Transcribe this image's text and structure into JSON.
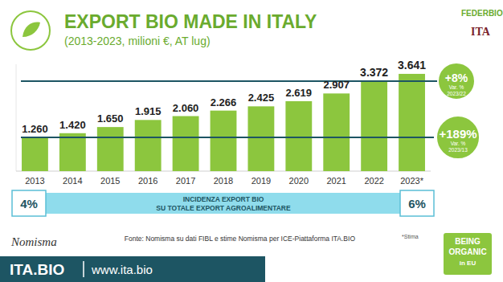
{
  "chart_data": {
    "type": "bar",
    "title": "EXPORT BIO MADE IN ITALY",
    "subtitle": "(2013-2023, milioni €, AT lug)",
    "categories": [
      "2013",
      "2014",
      "2015",
      "2016",
      "2017",
      "2018",
      "2019",
      "2020",
      "2021",
      "2022",
      "2023*"
    ],
    "values": [
      1260,
      1420,
      1650,
      1915,
      2060,
      2266,
      2425,
      2619,
      2907,
      3372,
      3641
    ],
    "value_labels": [
      "1.260",
      "1.420",
      "1.650",
      "1.915",
      "2.060",
      "2.266",
      "2.425",
      "2.619",
      "2.907",
      "3.372",
      "3.641"
    ],
    "color": "#8cc63e",
    "ylim": [
      0,
      4000
    ],
    "data_labels": true,
    "tick_labels": "x",
    "grid": false,
    "annotations": [
      {
        "text": "+8%",
        "label": "Var. %",
        "period": "2023/22",
        "reference": 3372
      },
      {
        "text": "+189%",
        "label": "Var. %",
        "period": "2023/13",
        "reference": 1260
      }
    ],
    "incidence": {
      "title": [
        "INCIDENZA EXPORT BIO",
        "SU TOTALE EXPORT AGROALIMENTARE"
      ],
      "start": "4%",
      "end": "6%"
    },
    "source": "Fonte: Nomisma su dati FIBL e stime Nomisma per ICE-Piattaforma ITA.BIO",
    "footnote": "*Stima",
    "logos": [
      "FEDERBIO",
      "ITA",
      "Nomisma"
    ],
    "badge": [
      "BEING",
      "ORGANIC",
      "in EU"
    ],
    "footer": [
      "ITA.BIO",
      "www.ita.bio"
    ]
  }
}
